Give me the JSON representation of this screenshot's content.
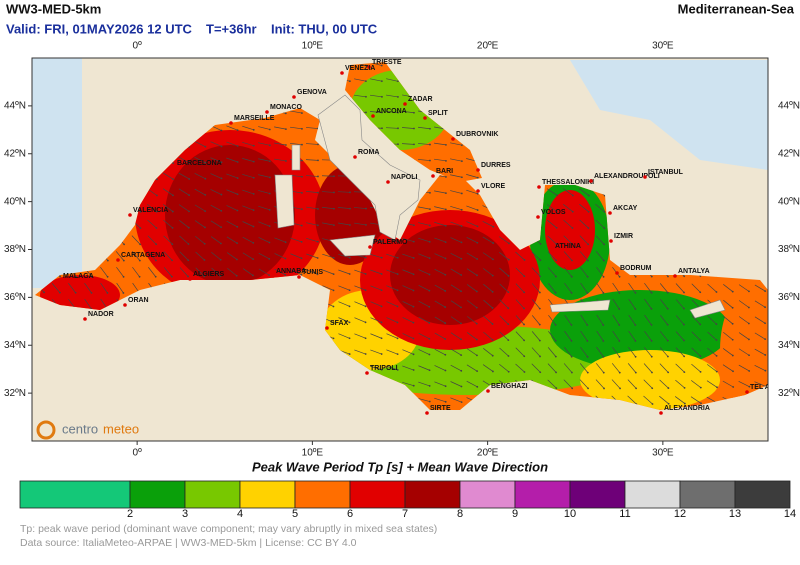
{
  "header": {
    "model": "WW3-MED-5km",
    "region": "Mediterranean-Sea",
    "valid": "Valid: FRI, 01MAY2026 12 UTC",
    "lead": "T=+36hr",
    "init": "Init: THU, 00 UTC"
  },
  "map": {
    "lon_range": [
      -6,
      36
    ],
    "lat_range": [
      30,
      46
    ],
    "lon_ticks": [
      {
        "value": 0,
        "label": "0º"
      },
      {
        "value": 10,
        "label": "10ºE"
      },
      {
        "value": 20,
        "label": "20ºE"
      },
      {
        "value": 30,
        "label": "30ºE"
      }
    ],
    "lat_ticks": [
      {
        "value": 32,
        "label": "32ºN"
      },
      {
        "value": 34,
        "label": "34ºN"
      },
      {
        "value": 36,
        "label": "36ºN"
      },
      {
        "value": 38,
        "label": "38ºN"
      },
      {
        "value": 40,
        "label": "40ºN"
      },
      {
        "value": 42,
        "label": "42ºN"
      },
      {
        "value": 44,
        "label": "44ºN"
      }
    ],
    "cities": [
      "TRIESTE",
      "VENEZIA",
      "GENOVA",
      "ZADAR",
      "MONACO",
      "ANCONA",
      "SPLIT",
      "MARSEILLE",
      "DUBROVNIK",
      "ROMA",
      "BARCELONA",
      "DURRES",
      "NAPOLI",
      "BARI",
      "VLORE",
      "THESSALONIKI",
      "ALEXANDROUPOLI",
      "ISTANBUL",
      "VALENCIA",
      "VOLOS",
      "AKCAY",
      "IZMIR",
      "ATHINA",
      "PALERMO",
      "CARTAGENA",
      "ALGIERS",
      "ANNABA",
      "TUNIS",
      "BODRUM",
      "ANTALYA",
      "MALAGA",
      "ORAN",
      "NADOR",
      "SFAX",
      "TRIPOLI",
      "BENGHAZI",
      "SIRTE",
      "ALEXANDRIA",
      "TEL AVIV"
    ],
    "logo": [
      "centro",
      "meteo"
    ]
  },
  "colorbar": {
    "title": "Peak Wave Period Tp [s]  +  Mean Wave Direction",
    "ticks": [
      2,
      3,
      4,
      5,
      6,
      7,
      8,
      9,
      10,
      11,
      12,
      13,
      14
    ],
    "colors": [
      "#14c878",
      "#0aa00a",
      "#78c800",
      "#ffd200",
      "#ff6e00",
      "#e10000",
      "#a50000",
      "#e08ad0",
      "#b41eaa",
      "#6e0078",
      "#dcdcdc",
      "#6e6e6e",
      "#3c3c3c"
    ]
  },
  "footer": {
    "note": "Tp: peak wave period (dominant wave component; may vary abruptly in mixed sea states)",
    "source": "Data source: ItaliaMeteo-ARPAE | WW3-MED-5km | License: CC BY 4.0"
  }
}
